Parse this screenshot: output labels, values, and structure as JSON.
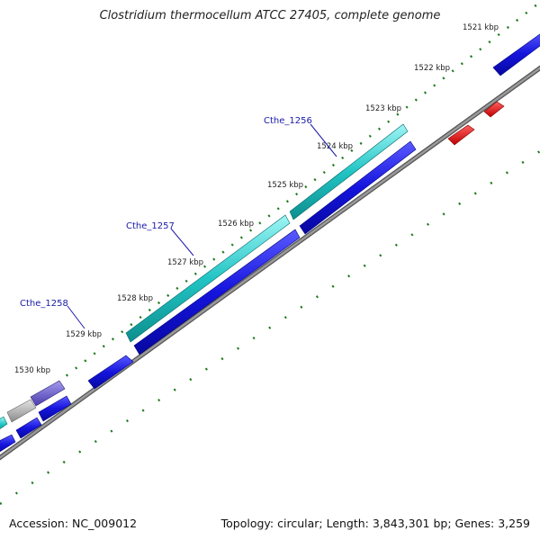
{
  "title": "Clostridium thermocellum ATCC 27405, complete genome",
  "footer": {
    "accession": "Accession: NC_009012",
    "summary": "Topology: circular; Length: 3,843,301 bp; Genes: 3,259"
  },
  "ticks": [
    "1521 kbp",
    "1522 kbp",
    "1523 kbp",
    "1524 kbp",
    "1525 kbp",
    "1526 kbp",
    "1527 kbp",
    "1528 kbp",
    "1529 kbp",
    "1530 kbp"
  ],
  "gene_labels": [
    "Cthe_1256",
    "Cthe_1257",
    "Cthe_1258"
  ],
  "colors": {
    "forward_cds": "#1010d8",
    "reverse_cds": "#e01010",
    "highlight_cds": "#20c8c8",
    "other_feature": "#6a5acd",
    "pseudo_feature": "#b0b0b0",
    "backbone": "#888888",
    "tick_dash": "#1e7a1e",
    "label_text": "#1a1aa8"
  }
}
